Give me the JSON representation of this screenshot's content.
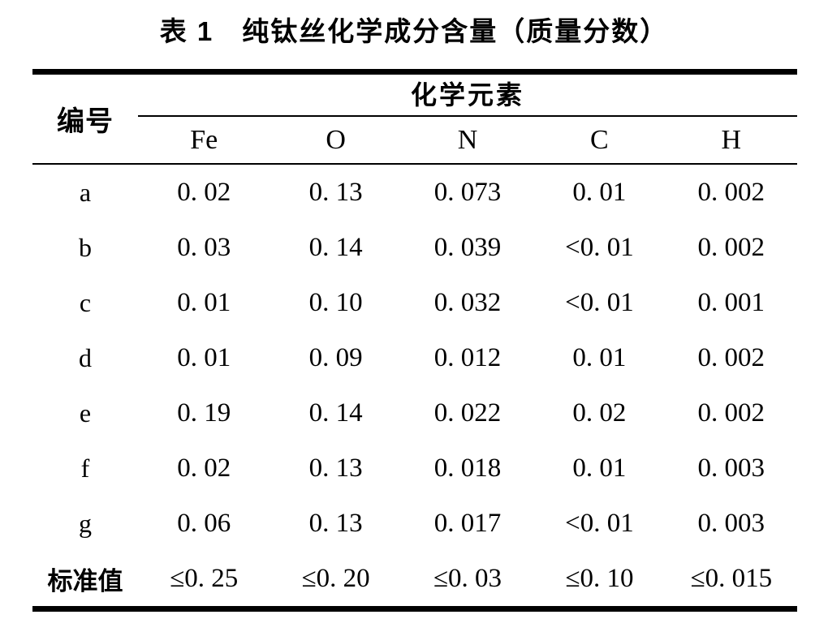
{
  "title": "表 1　纯钛丝化学成分含量（质量分数）",
  "table": {
    "row_header_label": "编号",
    "group_header_label": "化学元素",
    "columns": [
      "Fe",
      "O",
      "N",
      "C",
      "H"
    ],
    "rows": [
      {
        "label": "a",
        "values": [
          "0. 02",
          "0. 13",
          "0. 073",
          "0. 01",
          "0. 002"
        ]
      },
      {
        "label": "b",
        "values": [
          "0. 03",
          "0. 14",
          "0. 039",
          "<0. 01",
          "0. 002"
        ]
      },
      {
        "label": "c",
        "values": [
          "0. 01",
          "0. 10",
          "0. 032",
          "<0. 01",
          "0. 001"
        ]
      },
      {
        "label": "d",
        "values": [
          "0. 01",
          "0. 09",
          "0. 012",
          "0. 01",
          "0. 002"
        ]
      },
      {
        "label": "e",
        "values": [
          "0. 19",
          "0. 14",
          "0. 022",
          "0. 02",
          "0. 002"
        ]
      },
      {
        "label": "f",
        "values": [
          "0. 02",
          "0. 13",
          "0. 018",
          "0. 01",
          "0. 003"
        ]
      },
      {
        "label": "g",
        "values": [
          "0. 06",
          "0. 13",
          "0. 017",
          "<0. 01",
          "0. 003"
        ]
      },
      {
        "label": "标准值",
        "values": [
          "≤0. 25",
          "≤0. 20",
          "≤0. 03",
          "≤0. 10",
          "≤0. 015"
        ]
      }
    ]
  },
  "colors": {
    "background": "#ffffff",
    "text": "#000000",
    "rule": "#000000"
  }
}
